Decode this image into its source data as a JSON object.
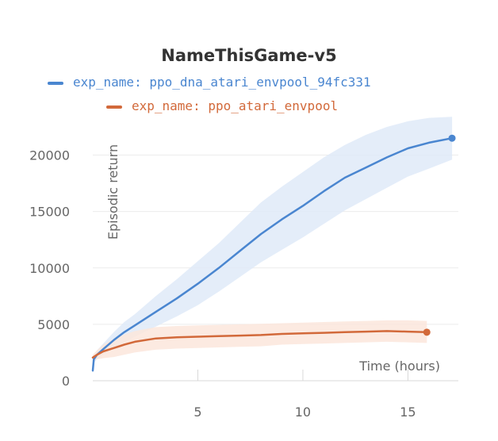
{
  "chart_data": {
    "type": "line",
    "title": "NameThisGame-v5",
    "xlabel": "Time (hours)",
    "ylabel": "Episodic return",
    "xlim": [
      0,
      17.4
    ],
    "ylim": [
      0,
      22500
    ],
    "xticks": [
      5,
      10,
      15
    ],
    "yticks": [
      0,
      5000,
      10000,
      15000,
      20000
    ],
    "grid": "horizontal",
    "legend": "top",
    "series": [
      {
        "name": "exp_name: ppo_dna_atari_envpool_94fc331",
        "color": "#4a86d0",
        "band_color": "#dfeaf8",
        "x": [
          0,
          0.05,
          0.2,
          0.5,
          1,
          1.5,
          2,
          3,
          4,
          5,
          6,
          7,
          8,
          9,
          10,
          11,
          12,
          13,
          14,
          15,
          16,
          17.1
        ],
        "y": [
          900,
          1900,
          2300,
          2800,
          3600,
          4300,
          4900,
          6100,
          7300,
          8600,
          10000,
          11500,
          13000,
          14300,
          15500,
          16800,
          18000,
          18900,
          19800,
          20600,
          21100,
          21500
        ],
        "upper": [
          1100,
          2200,
          2700,
          3300,
          4300,
          5200,
          5900,
          7500,
          9000,
          10600,
          12200,
          14000,
          15800,
          17200,
          18500,
          19800,
          20900,
          21800,
          22500,
          23000,
          23300,
          23400
        ],
        "lower": [
          700,
          1600,
          1900,
          2300,
          2900,
          3400,
          3900,
          4800,
          5700,
          6700,
          7900,
          9200,
          10500,
          11600,
          12700,
          13900,
          15100,
          16100,
          17100,
          18100,
          18800,
          19600
        ]
      },
      {
        "name": "exp_name: ppo_atari_envpool",
        "color": "#d2693a",
        "band_color": "#fbe6dc",
        "x": [
          0,
          0.2,
          0.5,
          1,
          1.5,
          2,
          3,
          4,
          5,
          6,
          7,
          8,
          9,
          10,
          11,
          12,
          13,
          14,
          15,
          15.9
        ],
        "y": [
          2050,
          2300,
          2600,
          2900,
          3200,
          3450,
          3750,
          3850,
          3900,
          3950,
          4000,
          4050,
          4150,
          4200,
          4250,
          4300,
          4350,
          4400,
          4350,
          4300
        ],
        "upper": [
          2300,
          2700,
          3200,
          3700,
          4100,
          4400,
          4750,
          4850,
          4900,
          4950,
          5000,
          5050,
          5100,
          5150,
          5200,
          5250,
          5300,
          5350,
          5350,
          5300
        ],
        "lower": [
          1800,
          1900,
          2000,
          2100,
          2300,
          2500,
          2750,
          2850,
          2900,
          2950,
          3000,
          3050,
          3200,
          3250,
          3300,
          3350,
          3400,
          3450,
          3400,
          3350
        ]
      }
    ]
  }
}
